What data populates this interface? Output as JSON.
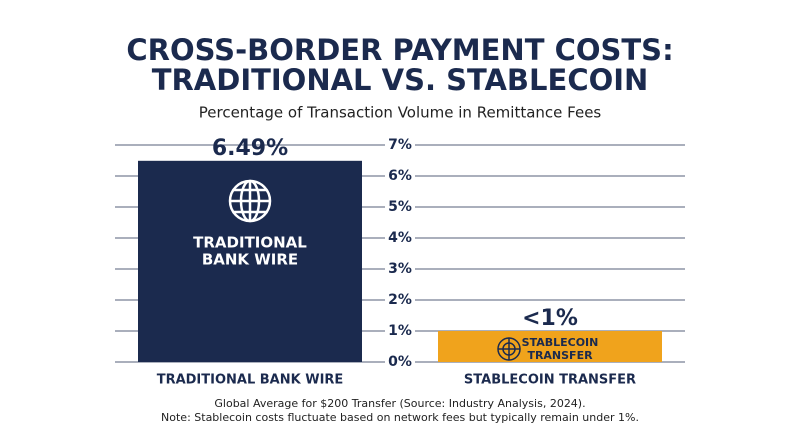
{
  "chart_data": {
    "type": "bar",
    "title": [
      "CROSS-BORDER PAYMENT COSTS:",
      "TRADITIONAL VS. STABLECOIN"
    ],
    "subtitle": "Percentage of Transaction Volume in Remittance Fees",
    "categories": [
      "TRADITIONAL BANK WIRE",
      "STABLECOIN TRANSFER"
    ],
    "values": [
      6.49,
      1
    ],
    "value_labels": [
      "6.49%",
      "<1%"
    ],
    "bar_labels": [
      [
        "TRADITIONAL",
        "BANK WIRE"
      ],
      [
        "STABLECOIN",
        "TRANSFER"
      ]
    ],
    "colors": [
      "#1b2a4e",
      "#f0a31c"
    ],
    "ylim": [
      0,
      7
    ],
    "yticks": [
      {
        "value": 0,
        "label": "0%"
      },
      {
        "value": 1,
        "label": "1%"
      },
      {
        "value": 2,
        "label": "2%"
      },
      {
        "value": 3,
        "label": "3%"
      },
      {
        "value": 4,
        "label": "4%"
      },
      {
        "value": 5,
        "label": "5%"
      },
      {
        "value": 6,
        "label": "6%"
      },
      {
        "value": 7,
        "label": "7%"
      }
    ],
    "grid": true,
    "footnote": [
      "Global Average for $200 Transfer (Source: Industry Analysis, 2024).",
      "Note: Stablecoin costs fluctuate based on network fees but typically remain under 1%."
    ]
  }
}
